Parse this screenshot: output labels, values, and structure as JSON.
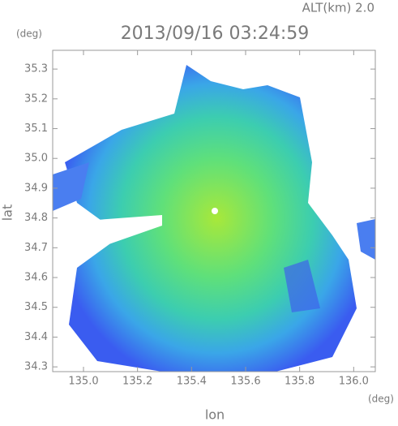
{
  "chart_data": {
    "type": "radar-map",
    "title": "2013/09/16 03:24:59",
    "subtitle": "ALT(km) 2.0",
    "x_label": "lon",
    "y_label": "lat",
    "x_unit": "(deg)",
    "y_unit": "(deg)",
    "xlim": [
      134.886,
      136.08
    ],
    "ylim": [
      34.284,
      35.363
    ],
    "xticks": [
      {
        "value": 135,
        "label": "135.0"
      },
      135.2,
      135.4,
      135.6,
      135.8,
      {
        "value": 136,
        "label": "136.0"
      }
    ],
    "yticks": [
      34.3,
      34.4,
      34.5,
      34.6,
      34.7,
      34.8,
      34.9,
      {
        "value": 35,
        "label": "35.0"
      },
      35.1,
      35.2,
      35.3
    ]
  }
}
